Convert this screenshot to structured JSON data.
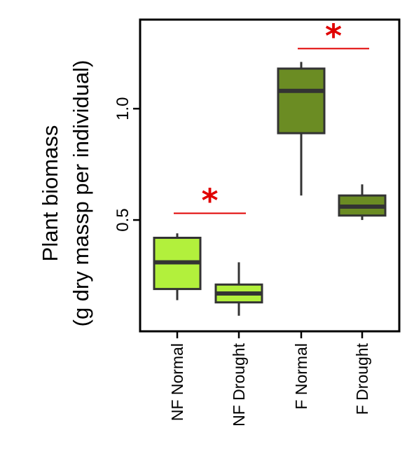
{
  "chart_data": {
    "type": "box",
    "ylabel_lines": [
      "Plant biomass",
      "(g dry massp per individual)"
    ],
    "ylim": [
      0.0,
      1.4
    ],
    "yticks": [
      0.5,
      1.0
    ],
    "ytick_labels": [
      "0.5",
      "1.0"
    ],
    "categories": [
      "NF Normal",
      "NF Drought",
      "F Normal",
      "F Drought"
    ],
    "boxes": [
      {
        "category": "NF Normal",
        "min": 0.14,
        "q1": 0.19,
        "median": 0.31,
        "q3": 0.42,
        "max": 0.44,
        "color": "#b2f03c"
      },
      {
        "category": "NF Drought",
        "min": 0.07,
        "q1": 0.13,
        "median": 0.17,
        "q3": 0.21,
        "max": 0.31,
        "color": "#b2f03c"
      },
      {
        "category": "F Normal",
        "min": 0.61,
        "q1": 0.89,
        "median": 1.08,
        "q3": 1.18,
        "max": 1.21,
        "color": "#6b8c23"
      },
      {
        "category": "F Drought",
        "min": 0.5,
        "q1": 0.52,
        "median": 0.56,
        "q3": 0.61,
        "max": 0.66,
        "color": "#6b8c23"
      }
    ],
    "significance": [
      {
        "between": [
          "NF Normal",
          "NF Drought"
        ],
        "label": "*",
        "level": 0.53
      },
      {
        "between": [
          "F Normal",
          "F Drought"
        ],
        "label": "*",
        "level": 1.27
      }
    ],
    "sig_color": "#e00000",
    "grid": false
  }
}
